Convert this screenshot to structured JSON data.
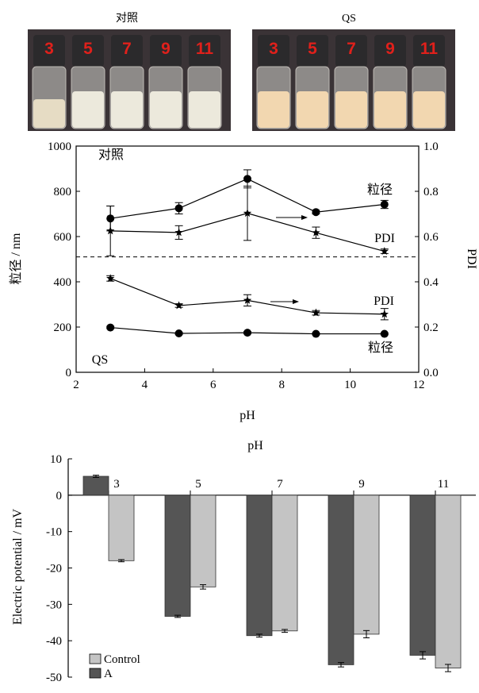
{
  "photos": {
    "left_title": "对照",
    "right_title": "QS",
    "vial_labels": [
      "3",
      "5",
      "7",
      "9",
      "11"
    ],
    "colors": {
      "label": "#e0201b",
      "cap": "#2b2a2c",
      "bg": "#3a3336"
    }
  },
  "chart_data": [
    {
      "type": "line",
      "title": "",
      "xlabel": "pH",
      "ylabel": "粒径 / nm",
      "y2label": "PDI",
      "xlim": [
        2,
        12
      ],
      "ylim": [
        0,
        1000
      ],
      "y2lim": [
        0.0,
        1.0
      ],
      "x_ticks": [
        "2",
        "4",
        "6",
        "8",
        "10",
        "12"
      ],
      "y_ticks": [
        "0",
        "200",
        "400",
        "600",
        "800",
        "1000"
      ],
      "y2_ticks": [
        "0.0",
        "0.2",
        "0.4",
        "0.6",
        "0.8",
        "1.0"
      ],
      "x": [
        3,
        5,
        7,
        9,
        11
      ],
      "series": [
        {
          "name": "粒径",
          "group": "对照",
          "axis": "left",
          "marker": "circle",
          "values": [
            680,
            725,
            855,
            708,
            742
          ],
          "errors": [
            55,
            25,
            40,
            8,
            18
          ]
        },
        {
          "name": "PDI",
          "group": "对照",
          "axis": "right",
          "marker": "star",
          "values": [
            0.625,
            0.618,
            0.703,
            0.617,
            0.535
          ],
          "errors": [
            0.11,
            0.03,
            0.12,
            0.025,
            0.01
          ]
        },
        {
          "name": "PDI",
          "group": "QS",
          "axis": "right",
          "marker": "star",
          "values": [
            0.415,
            0.295,
            0.318,
            0.263,
            0.257
          ],
          "errors": [
            0.012,
            0.008,
            0.025,
            0.01,
            0.025
          ]
        },
        {
          "name": "粒径",
          "group": "QS",
          "axis": "left",
          "marker": "circle",
          "values": [
            198,
            172,
            175,
            170,
            170
          ],
          "errors": [
            5,
            4,
            5,
            4,
            4
          ]
        }
      ],
      "reference_line": {
        "axis": "left",
        "value": 510,
        "style": "dashed"
      },
      "annotations": [
        "对照",
        "QS",
        "粒径",
        "PDI",
        "PDI",
        "粒径"
      ]
    },
    {
      "type": "bar",
      "title": "pH",
      "xlabel": "pH",
      "ylabel": "Electric potential / mV",
      "categories": [
        "3",
        "5",
        "7",
        "9",
        "11"
      ],
      "ylim": [
        -50,
        10
      ],
      "y_ticks": [
        "10",
        "0",
        "-10",
        "-20",
        "-30",
        "-40",
        "-50"
      ],
      "series": [
        {
          "name": "A",
          "color": "#555555",
          "values": [
            5.2,
            -33.3,
            -38.6,
            -46.6,
            -44.0
          ],
          "errors": [
            0.3,
            0.3,
            0.4,
            0.6,
            1.0
          ]
        },
        {
          "name": "Control",
          "color": "#c4c4c4",
          "values": [
            -18.0,
            -25.2,
            -37.3,
            -38.2,
            -47.5
          ],
          "errors": [
            0.3,
            0.6,
            0.4,
            1.0,
            1.0
          ]
        }
      ],
      "legend": [
        "Control",
        "A"
      ],
      "legend_position": "bottom-left"
    }
  ]
}
